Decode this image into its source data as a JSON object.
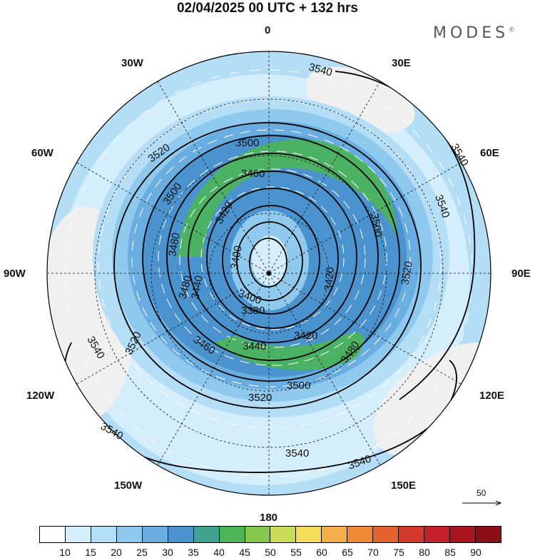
{
  "title": "02/04/2025  00 UTC  + 132 hrs",
  "brand": "MODES",
  "brand_mark": "©",
  "longitude_labels": {
    "n0": "0",
    "n30e": "30E",
    "n60e": "60E",
    "e90": "90E",
    "e120": "120E",
    "e150": "150E",
    "s180": "180",
    "w150": "150W",
    "w120": "120W",
    "w90": "90W",
    "w60": "60W",
    "w30": "30W"
  },
  "vector_reference": "50",
  "contour_labels": [
    "3540",
    "3540",
    "3540",
    "3540",
    "3540",
    "3540",
    "3540",
    "3520",
    "3520",
    "3520",
    "3520",
    "3500",
    "3500",
    "3500",
    "3500",
    "3480",
    "3480",
    "3480",
    "3460",
    "3460",
    "3440",
    "3440",
    "3420",
    "3420",
    "3420",
    "3400",
    "3400",
    "3380"
  ],
  "colorbar": {
    "ticks": [
      "10",
      "15",
      "20",
      "25",
      "30",
      "35",
      "40",
      "45",
      "50",
      "55",
      "60",
      "65",
      "70",
      "75",
      "80",
      "85",
      "90"
    ],
    "colors": [
      "#ffffff",
      "#d5eefc",
      "#b3def6",
      "#8fc9ee",
      "#6aade0",
      "#4a93cf",
      "#3fa48f",
      "#4cb657",
      "#84c74a",
      "#c8dd55",
      "#f5dc5a",
      "#f4ae4a",
      "#ee8a35",
      "#e4622d",
      "#d63a2c",
      "#c32129",
      "#a8151e",
      "#8c0f16"
    ]
  }
}
